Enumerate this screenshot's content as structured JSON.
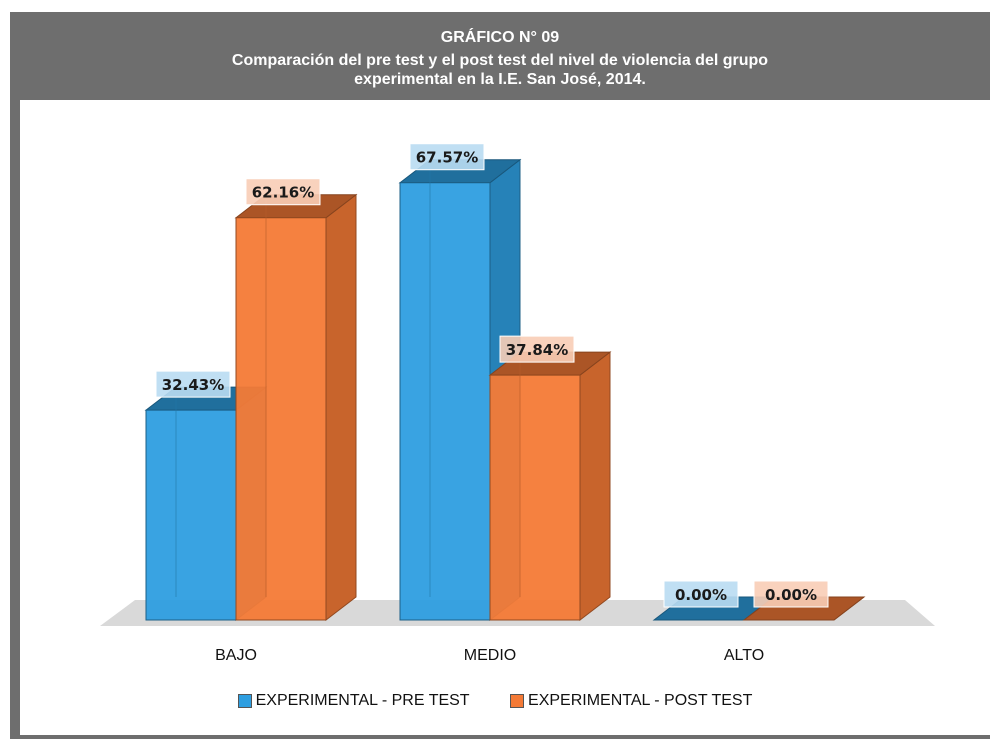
{
  "header": {
    "title_line1": "GRÁFICO N° 09",
    "title_line2": "Comparación del pre test y el post test del nivel de violencia del grupo",
    "title_line3": "experimental en la I.E. San José, 2014."
  },
  "chart_data": {
    "type": "bar",
    "style": "3d-clustered",
    "categories": [
      "BAJO",
      "MEDIO",
      "ALTO"
    ],
    "series": [
      {
        "name": "EXPERIMENTAL - PRE TEST",
        "values": [
          32.43,
          67.57,
          0.0
        ],
        "labels": [
          "32.43%",
          "67.57%",
          "0.00%"
        ],
        "color": "#2e9ee0"
      },
      {
        "name": "EXPERIMENTAL - POST TEST",
        "values": [
          62.16,
          37.84,
          0.0
        ],
        "labels": [
          "62.16%",
          "37.84%",
          "0.00%"
        ],
        "color": "#f47a36"
      }
    ],
    "ylim": [
      0,
      70
    ],
    "grid": false,
    "legend_position": "bottom"
  }
}
